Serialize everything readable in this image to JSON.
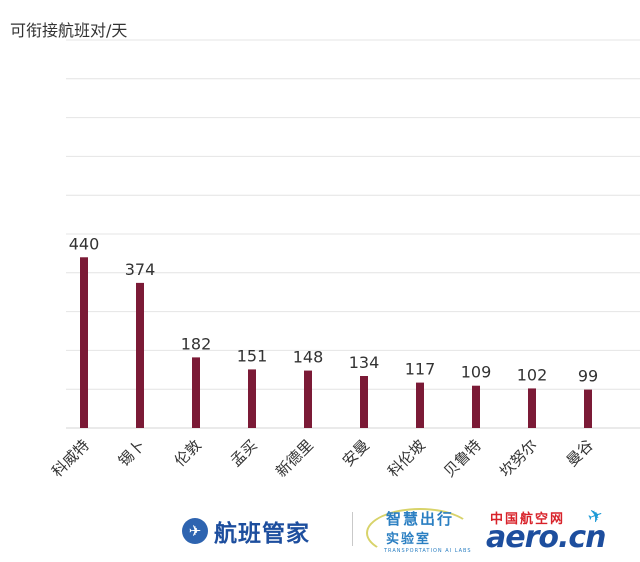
{
  "chart_data": {
    "type": "bar",
    "title": "",
    "ylabel": "可衔接航班对/天",
    "xlabel": "",
    "categories": [
      "科威特",
      "锡卜",
      "伦敦",
      "孟买",
      "新德里",
      "安曼",
      "科伦坡",
      "贝鲁特",
      "坎努尔",
      "曼谷"
    ],
    "values": [
      440,
      374,
      182,
      151,
      148,
      134,
      117,
      109,
      102,
      99
    ],
    "ylim": [
      0,
      1000
    ],
    "grid": true,
    "bar_color": "#7b1a36"
  },
  "footer": {
    "brand1": {
      "text": "航班管家",
      "icon": "plane-badge-icon",
      "color": "#1d4e9e"
    },
    "brand2": {
      "cn_line1": "智慧出行",
      "cn_line2": "实验室",
      "en": "TRANSPORTATION AI LABS",
      "color": "#2b7fc2"
    },
    "brand3": {
      "cn": "中国航空网",
      "en": "aero.cn",
      "icon": "plane-icon"
    }
  }
}
